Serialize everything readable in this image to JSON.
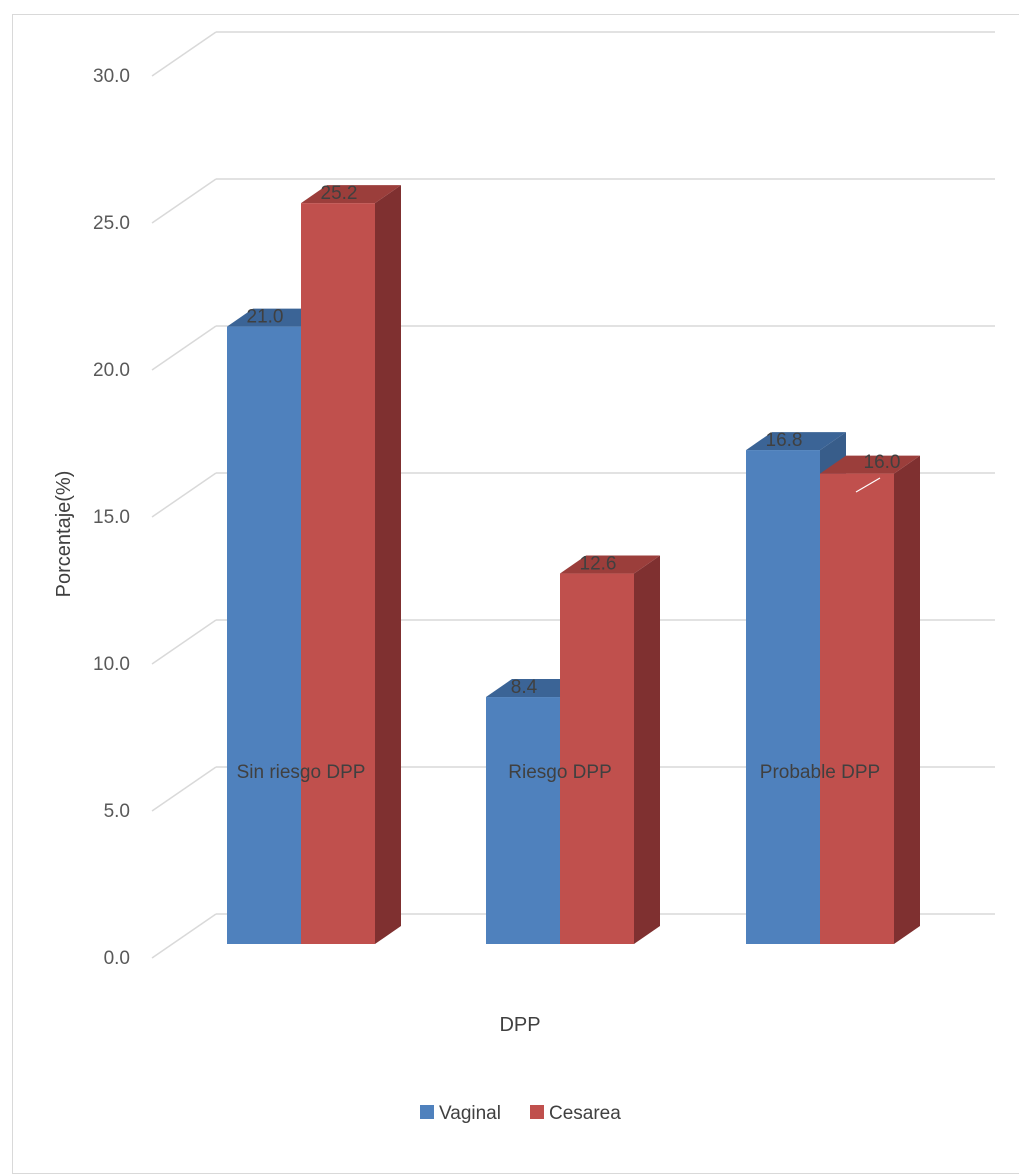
{
  "chart_data": {
    "type": "bar",
    "categories": [
      "Sin riesgo DPP",
      "Riesgo DPP",
      "Probable DPP"
    ],
    "series": [
      {
        "name": "Vaginal",
        "values": [
          21.0,
          8.4,
          16.8
        ]
      },
      {
        "name": "Cesarea",
        "values": [
          25.2,
          12.6,
          16.0
        ]
      }
    ],
    "data_labels": [
      [
        "21.0",
        "8.4",
        "16.8"
      ],
      [
        "25.2",
        "12.6",
        "16.0"
      ]
    ],
    "yticks": [
      "0.0",
      "5.0",
      "10.0",
      "15.0",
      "20.0",
      "25.0",
      "30.0"
    ],
    "title": "",
    "xlabel": "DPP",
    "ylabel": "Porcentaje(%)",
    "ylim": [
      0,
      30
    ],
    "grid": true,
    "legend_position": "bottom",
    "style": "3d-clustered-column",
    "colors": {
      "Vaginal": {
        "front": "#4f81bd",
        "top": "#3b6496",
        "side": "#385d8a"
      },
      "Cesarea": {
        "front": "#c0504d",
        "top": "#9b3e3b",
        "side": "#7f3030"
      },
      "gridline": "#d9d9d9"
    }
  }
}
